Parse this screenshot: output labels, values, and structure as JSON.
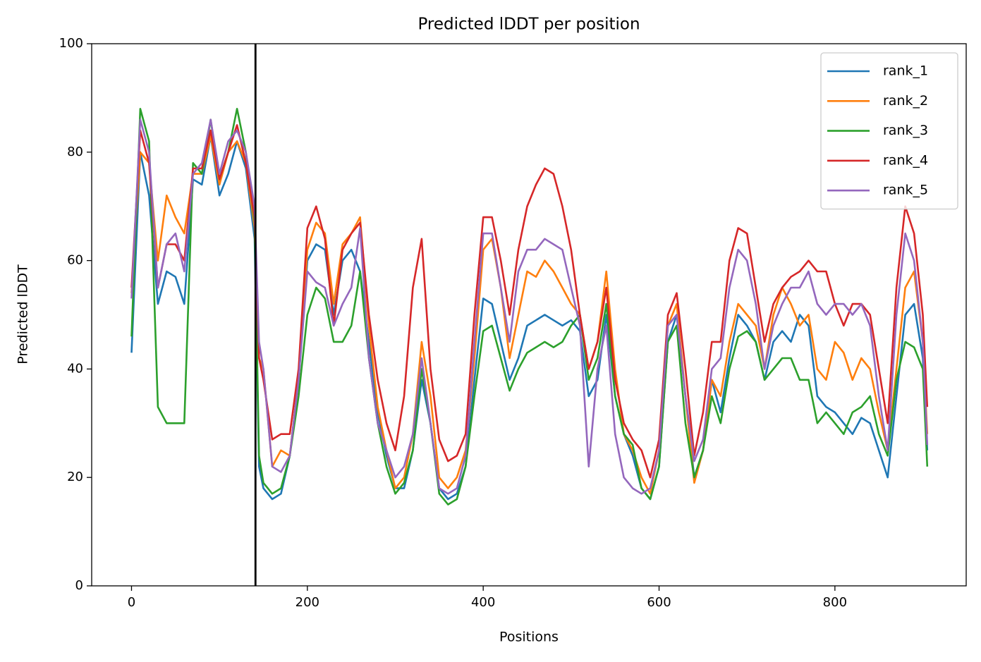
{
  "chart_data": {
    "type": "line",
    "title": "Predicted lDDT per position",
    "x_label": "Positions",
    "y_label": "Predicted lDDT",
    "xlim": [
      -45.3,
      949.3
    ],
    "ylim": [
      0,
      100
    ],
    "xticks": [
      0,
      200,
      400,
      600,
      800
    ],
    "yticks": [
      0,
      20,
      40,
      60,
      80,
      100
    ],
    "grid": false,
    "legend": "upper right",
    "vlines": [
      141
    ],
    "x": [
      0,
      10,
      20,
      30,
      40,
      50,
      60,
      70,
      80,
      90,
      100,
      110,
      120,
      130,
      140,
      145,
      150,
      160,
      170,
      180,
      190,
      200,
      210,
      220,
      230,
      240,
      250,
      260,
      270,
      280,
      290,
      300,
      310,
      320,
      330,
      340,
      350,
      360,
      370,
      380,
      390,
      400,
      410,
      420,
      430,
      440,
      450,
      460,
      470,
      480,
      490,
      500,
      510,
      520,
      530,
      540,
      550,
      560,
      570,
      580,
      590,
      600,
      610,
      620,
      630,
      640,
      650,
      660,
      670,
      680,
      690,
      700,
      710,
      720,
      730,
      740,
      750,
      760,
      770,
      780,
      790,
      800,
      810,
      820,
      830,
      840,
      850,
      860,
      870,
      880,
      890,
      900,
      905
    ],
    "series": [
      {
        "name": "rank_1",
        "color": "#1f77b4",
        "values": [
          43,
          80,
          72,
          52,
          58,
          57,
          52,
          75,
          74,
          83,
          72,
          76,
          82,
          77,
          64,
          22,
          18,
          16,
          17,
          24,
          38,
          60,
          63,
          62,
          50,
          60,
          62,
          58,
          45,
          32,
          24,
          18,
          18,
          25,
          38,
          30,
          18,
          16,
          17,
          22,
          38,
          53,
          52,
          45,
          38,
          42,
          48,
          49,
          50,
          49,
          48,
          49,
          47,
          35,
          38,
          50,
          35,
          28,
          24,
          18,
          16,
          22,
          45,
          50,
          35,
          20,
          25,
          38,
          32,
          42,
          50,
          48,
          45,
          38,
          45,
          47,
          45,
          50,
          48,
          35,
          33,
          32,
          30,
          28,
          31,
          30,
          25,
          20,
          35,
          50,
          52,
          42,
          25
        ]
      },
      {
        "name": "rank_2",
        "color": "#ff7f0e",
        "values": [
          54,
          80,
          78,
          60,
          72,
          68,
          65,
          76,
          76,
          83,
          74,
          80,
          82,
          78,
          66,
          42,
          40,
          22,
          25,
          24,
          38,
          62,
          67,
          65,
          52,
          63,
          65,
          68,
          48,
          33,
          25,
          18,
          20,
          28,
          45,
          35,
          20,
          18,
          20,
          25,
          42,
          62,
          64,
          55,
          42,
          50,
          58,
          57,
          60,
          58,
          55,
          52,
          50,
          40,
          45,
          58,
          40,
          28,
          25,
          20,
          17,
          25,
          48,
          52,
          35,
          19,
          25,
          38,
          35,
          45,
          52,
          50,
          48,
          40,
          50,
          55,
          52,
          48,
          50,
          40,
          38,
          45,
          43,
          38,
          42,
          40,
          32,
          25,
          40,
          55,
          58,
          45,
          28
        ]
      },
      {
        "name": "rank_3",
        "color": "#2ca02c",
        "values": [
          46,
          88,
          82,
          33,
          30,
          30,
          30,
          78,
          76,
          86,
          75,
          80,
          88,
          80,
          67,
          24,
          19,
          17,
          18,
          24,
          35,
          50,
          55,
          53,
          45,
          45,
          48,
          58,
          42,
          30,
          22,
          17,
          19,
          25,
          40,
          30,
          17,
          15,
          16,
          22,
          35,
          47,
          48,
          42,
          36,
          40,
          43,
          44,
          45,
          44,
          45,
          48,
          50,
          38,
          42,
          52,
          35,
          28,
          26,
          18,
          16,
          22,
          45,
          48,
          30,
          20,
          25,
          35,
          30,
          40,
          46,
          47,
          45,
          38,
          40,
          42,
          42,
          38,
          38,
          30,
          32,
          30,
          28,
          32,
          33,
          35,
          28,
          24,
          38,
          45,
          44,
          40,
          22
        ]
      },
      {
        "name": "rank_4",
        "color": "#d62728",
        "values": [
          55,
          84,
          78,
          55,
          63,
          63,
          60,
          77,
          77,
          84,
          75,
          80,
          85,
          78,
          68,
          42,
          38,
          27,
          28,
          28,
          40,
          66,
          70,
          64,
          48,
          62,
          65,
          67,
          50,
          38,
          30,
          25,
          35,
          55,
          64,
          40,
          27,
          23,
          24,
          28,
          50,
          68,
          68,
          60,
          50,
          62,
          70,
          74,
          77,
          76,
          70,
          62,
          50,
          40,
          45,
          55,
          38,
          30,
          27,
          25,
          20,
          27,
          50,
          54,
          40,
          24,
          32,
          45,
          45,
          60,
          66,
          65,
          55,
          45,
          52,
          55,
          57,
          58,
          60,
          58,
          58,
          52,
          48,
          52,
          52,
          50,
          40,
          30,
          55,
          70,
          65,
          50,
          33
        ]
      },
      {
        "name": "rank_5",
        "color": "#9467bd",
        "values": [
          53,
          86,
          80,
          55,
          63,
          65,
          58,
          76,
          78,
          86,
          76,
          82,
          84,
          80,
          70,
          45,
          40,
          22,
          21,
          24,
          38,
          58,
          56,
          55,
          48,
          52,
          55,
          66,
          42,
          30,
          25,
          20,
          22,
          28,
          42,
          30,
          18,
          17,
          18,
          24,
          45,
          65,
          65,
          55,
          45,
          58,
          62,
          62,
          64,
          63,
          62,
          55,
          48,
          22,
          40,
          48,
          28,
          20,
          18,
          17,
          18,
          25,
          48,
          50,
          35,
          23,
          27,
          40,
          42,
          55,
          62,
          60,
          52,
          40,
          48,
          52,
          55,
          55,
          58,
          52,
          50,
          52,
          52,
          50,
          52,
          48,
          35,
          25,
          50,
          65,
          60,
          45,
          26
        ]
      }
    ]
  }
}
